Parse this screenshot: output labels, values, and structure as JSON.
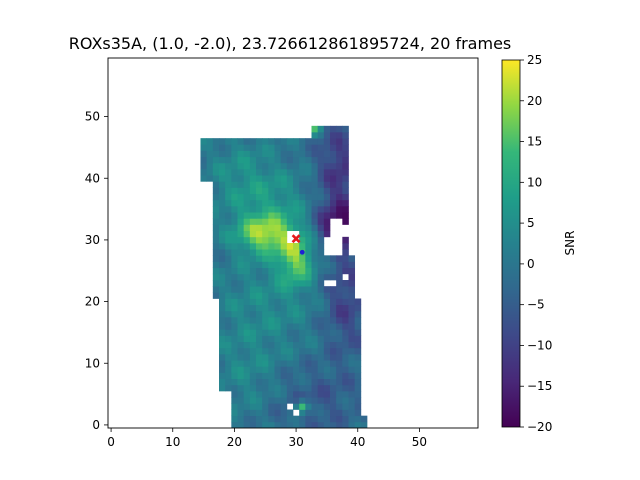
{
  "chart_data": {
    "type": "heatmap",
    "title": "ROXs35A, (1.0, -2.0), 23.726612861895724, 20 frames",
    "xlabel": "",
    "ylabel": "",
    "xlim": [
      -0.5,
      59.5
    ],
    "ylim": [
      -0.5,
      59.5
    ],
    "x_ticks": [
      "0",
      "10",
      "20",
      "30",
      "40",
      "50"
    ],
    "x_tick_values": [
      0,
      10,
      20,
      30,
      40,
      50
    ],
    "y_ticks": [
      "0",
      "10",
      "20",
      "30",
      "40",
      "50"
    ],
    "y_tick_values": [
      0,
      10,
      20,
      30,
      40,
      50
    ],
    "grid": false,
    "colormap": "viridis",
    "colorbar": {
      "label": "SNR",
      "range": [
        -20,
        25
      ],
      "ticks": [
        "−20",
        "−15",
        "−10",
        "−5",
        "0",
        "5",
        "10",
        "15",
        "20",
        "25"
      ],
      "tick_values": [
        -20,
        -15,
        -10,
        -5,
        0,
        5,
        10,
        15,
        20,
        25
      ]
    },
    "valid_region": {
      "rows": [
        {
          "y": [
            0,
            1
          ],
          "x": [
            19.5,
            41.5
          ]
        },
        {
          "y": [
            2,
            5
          ],
          "x": [
            19.5,
            40.5
          ]
        },
        {
          "y": [
            6,
            9
          ],
          "x": [
            17.5,
            40.5
          ]
        },
        {
          "y": [
            10,
            20
          ],
          "x": [
            17.5,
            40.5
          ]
        },
        {
          "y": [
            21,
            27
          ],
          "x": [
            16.5,
            39.5
          ]
        },
        {
          "y": [
            28,
            33
          ],
          "x": [
            16.5,
            38.5
          ]
        },
        {
          "y": [
            34,
            39
          ],
          "x": [
            16.5,
            38.5
          ]
        },
        {
          "y": [
            40,
            46
          ],
          "x": [
            14.5,
            38.5
          ]
        },
        {
          "y": [
            47,
            48
          ],
          "x": [
            32.5,
            38.5
          ]
        }
      ],
      "masked_cells": [
        [
          29,
          30
        ],
        [
          30,
          30
        ],
        [
          29,
          31
        ],
        [
          30,
          31
        ],
        [
          35,
          28
        ],
        [
          36,
          28
        ],
        [
          37,
          28
        ],
        [
          35,
          29
        ],
        [
          36,
          29
        ],
        [
          37,
          29
        ],
        [
          35,
          30
        ],
        [
          36,
          30
        ],
        [
          37,
          30
        ],
        [
          36,
          31
        ],
        [
          37,
          31
        ],
        [
          38,
          31
        ],
        [
          36,
          32
        ],
        [
          37,
          32
        ],
        [
          38,
          32
        ],
        [
          36,
          33
        ],
        [
          37,
          33
        ],
        [
          35,
          23
        ],
        [
          36,
          23
        ],
        [
          38,
          24
        ],
        [
          29,
          3
        ],
        [
          30,
          2
        ]
      ]
    },
    "smooth_fields": {
      "base": -1,
      "blobs": [
        {
          "x": 25,
          "y": 31,
          "sx": 3.2,
          "sy": 2.2,
          "amp": 19
        },
        {
          "x": 30,
          "y": 27,
          "sx": 2.0,
          "sy": 3.0,
          "amp": 17
        },
        {
          "x": 21,
          "y": 40,
          "sx": 4,
          "sy": 5,
          "amp": 6
        },
        {
          "x": 27,
          "y": 36,
          "sx": 4,
          "sy": 4,
          "amp": 6
        },
        {
          "x": 25,
          "y": 20,
          "sx": 6,
          "sy": 6,
          "amp": 5
        },
        {
          "x": 22,
          "y": 8,
          "sx": 4,
          "sy": 5,
          "amp": 4
        },
        {
          "x": 37,
          "y": 32,
          "sx": 2.5,
          "sy": 2.5,
          "amp": -16
        },
        {
          "x": 37,
          "y": 41,
          "sx": 2.5,
          "sy": 6,
          "amp": -11
        },
        {
          "x": 38,
          "y": 20,
          "sx": 2.5,
          "sy": 6,
          "amp": -9
        },
        {
          "x": 33,
          "y": 4,
          "sx": 5,
          "sy": 4,
          "amp": -5
        },
        {
          "x": 31,
          "y": 3,
          "sx": 0.7,
          "sy": 0.7,
          "amp": 22
        },
        {
          "x": 33,
          "y": 48,
          "sx": 0.7,
          "sy": 0.7,
          "amp": 14
        }
      ]
    },
    "markers": [
      {
        "label": "red-x",
        "x": 30,
        "y": 30.2,
        "color": "#e31a1c",
        "shape": "x"
      },
      {
        "label": "blue-dot",
        "x": 31,
        "y": 28,
        "color": "#1f1fd6",
        "shape": "dot"
      }
    ]
  }
}
